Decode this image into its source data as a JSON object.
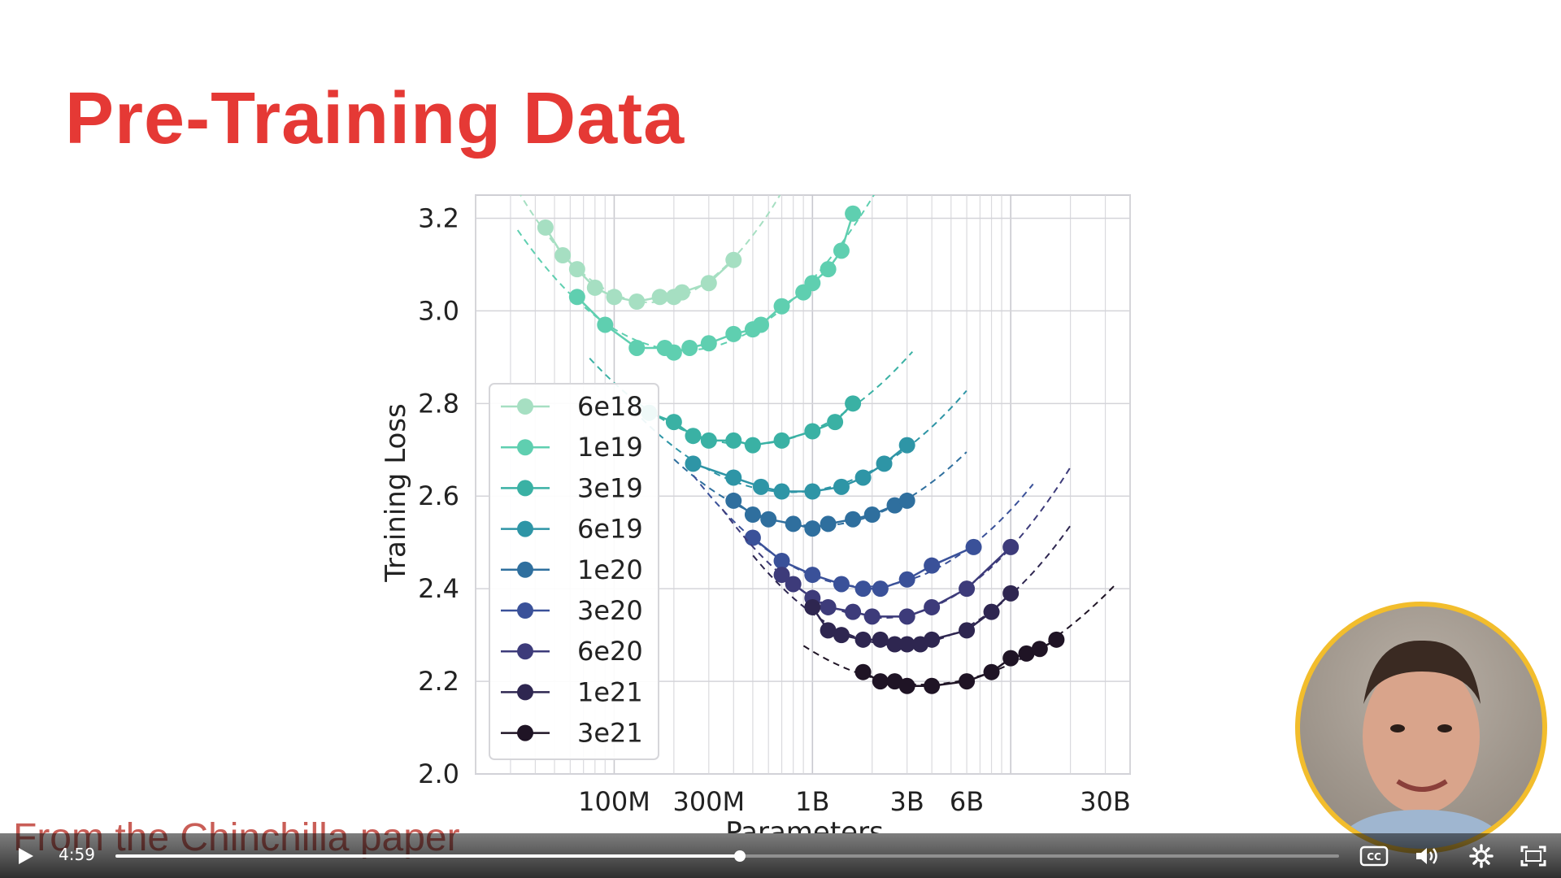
{
  "slide": {
    "title": "Pre-Training Data",
    "caption": "From the Chinchilla paper"
  },
  "player": {
    "current_time": "4:59",
    "progress_fraction": 0.51,
    "icons": [
      "play-icon",
      "closed-captions-icon",
      "volume-icon",
      "settings-gear-icon",
      "fullscreen-icon"
    ]
  },
  "webcam": {
    "description_icon": "presenter-webcam",
    "border_color": "#f2bd2c"
  },
  "colors": {
    "title": "#e53935",
    "caption": "#c0433a"
  },
  "chart_data": {
    "type": "scatter",
    "xlabel": "Parameters",
    "ylabel": "Training Loss",
    "x_scale": "log",
    "xlim": [
      20000000,
      40000000000
    ],
    "ylim": [
      2.0,
      3.25
    ],
    "grid": true,
    "legend_position": "middle-left",
    "x_ticks": [
      {
        "value": 100000000,
        "label": "100M"
      },
      {
        "value": 300000000,
        "label": "300M"
      },
      {
        "value": 1000000000,
        "label": "1B"
      },
      {
        "value": 3000000000,
        "label": "3B"
      },
      {
        "value": 6000000000,
        "label": "6B"
      },
      {
        "value": 30000000000,
        "label": "30B"
      }
    ],
    "y_ticks": [
      {
        "value": 2.0,
        "label": "2.0"
      },
      {
        "value": 2.2,
        "label": "2.2"
      },
      {
        "value": 2.4,
        "label": "2.4"
      },
      {
        "value": 2.6,
        "label": "2.6"
      },
      {
        "value": 2.8,
        "label": "2.8"
      },
      {
        "value": 3.0,
        "label": "3.0"
      },
      {
        "value": 3.2,
        "label": "3.2"
      }
    ],
    "series": [
      {
        "name": "6e18",
        "color": "#a6dfc2",
        "x": [
          45,
          55,
          65,
          80,
          100,
          130,
          170,
          200,
          220,
          300,
          400
        ],
        "y": [
          3.18,
          3.12,
          3.09,
          3.05,
          3.03,
          3.02,
          3.03,
          3.03,
          3.04,
          3.06,
          3.11
        ]
      },
      {
        "name": "1e19",
        "color": "#5fcfb0",
        "x": [
          65,
          90,
          130,
          180,
          200,
          240,
          300,
          400,
          500,
          550,
          700,
          900,
          1000,
          1200,
          1400,
          1600
        ],
        "y": [
          3.03,
          2.97,
          2.92,
          2.92,
          2.91,
          2.92,
          2.93,
          2.95,
          2.96,
          2.97,
          3.01,
          3.04,
          3.06,
          3.09,
          3.13,
          3.21
        ]
      },
      {
        "name": "3e19",
        "color": "#3ab1a4",
        "x": [
          150,
          200,
          250,
          300,
          400,
          500,
          700,
          1000,
          1300,
          1600
        ],
        "y": [
          2.78,
          2.76,
          2.73,
          2.72,
          2.72,
          2.71,
          2.72,
          2.74,
          2.76,
          2.8
        ]
      },
      {
        "name": "6e19",
        "color": "#2e95a6",
        "x": [
          250,
          400,
          550,
          700,
          1000,
          1400,
          1800,
          2300,
          3000
        ],
        "y": [
          2.67,
          2.64,
          2.62,
          2.61,
          2.61,
          2.62,
          2.64,
          2.67,
          2.71
        ]
      },
      {
        "name": "1e20",
        "color": "#2f6f9e",
        "x": [
          400,
          500,
          600,
          800,
          1000,
          1200,
          1600,
          2000,
          2600,
          3000
        ],
        "y": [
          2.59,
          2.56,
          2.55,
          2.54,
          2.53,
          2.54,
          2.55,
          2.56,
          2.58,
          2.59
        ]
      },
      {
        "name": "3e20",
        "color": "#3a5199",
        "x": [
          500,
          700,
          1000,
          1400,
          1800,
          2200,
          3000,
          4000,
          6500
        ],
        "y": [
          2.51,
          2.46,
          2.43,
          2.41,
          2.4,
          2.4,
          2.42,
          2.45,
          2.49
        ]
      },
      {
        "name": "6e20",
        "color": "#3d3b7a",
        "x": [
          700,
          800,
          1000,
          1200,
          1600,
          2000,
          3000,
          4000,
          6000,
          10000
        ],
        "y": [
          2.43,
          2.41,
          2.38,
          2.36,
          2.35,
          2.34,
          2.34,
          2.36,
          2.4,
          2.49
        ]
      },
      {
        "name": "1e21",
        "color": "#2e2650",
        "x": [
          1000,
          1200,
          1400,
          1800,
          2200,
          2600,
          3000,
          3500,
          4000,
          6000,
          8000,
          10000
        ],
        "y": [
          2.36,
          2.31,
          2.3,
          2.29,
          2.29,
          2.28,
          2.28,
          2.28,
          2.29,
          2.31,
          2.35,
          2.39
        ]
      },
      {
        "name": "3e21",
        "color": "#1f1425",
        "x": [
          1800,
          2200,
          2600,
          3000,
          4000,
          6000,
          8000,
          10000,
          12000,
          14000,
          17000
        ],
        "y": [
          2.22,
          2.2,
          2.2,
          2.19,
          2.19,
          2.2,
          2.22,
          2.25,
          2.26,
          2.27,
          2.29
        ]
      }
    ]
  }
}
